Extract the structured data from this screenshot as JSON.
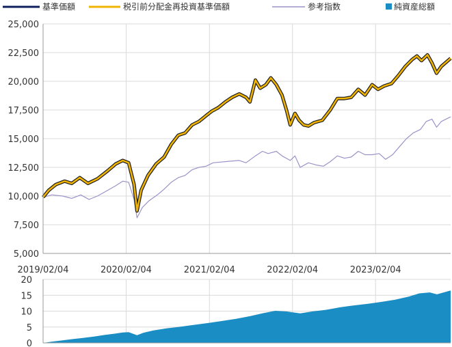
{
  "chart_data": [
    {
      "type": "line",
      "title": "",
      "legend": {
        "placement": "top",
        "entries": [
          {
            "name": "基準価額",
            "color": "#0d1f5c",
            "marker": "line"
          },
          {
            "name": "税引前分配金再投資基準価額",
            "color": "#f0b400",
            "marker": "line"
          },
          {
            "name": "参考指数",
            "color": "#9a92c8",
            "marker": "line"
          },
          {
            "name": "純資産総額",
            "color": "#1a8ec4",
            "marker": "square"
          }
        ]
      },
      "xlabel": "",
      "ylabel": "",
      "x_ticks": [
        "2019/02/04",
        "2020/02/04",
        "2021/02/04",
        "2022/02/04",
        "2023/02/04"
      ],
      "x_range": [
        "2019/02/04",
        "2023/12/31"
      ],
      "y_ticks": [
        "5,000",
        "7,500",
        "10,000",
        "12,500",
        "15,000",
        "17,500",
        "20,000",
        "22,500",
        "25,000"
      ],
      "ylim": [
        5000,
        25000
      ],
      "grid": true,
      "series": [
        {
          "name": "税引前分配金再投資基準価額",
          "color": "#f0b400",
          "points": [
            [
              "2019/02/04",
              9900
            ],
            [
              "2019/03/01",
              10500
            ],
            [
              "2019/04/01",
              11000
            ],
            [
              "2019/05/10",
              11300
            ],
            [
              "2019/06/10",
              11100
            ],
            [
              "2019/07/15",
              11600
            ],
            [
              "2019/08/20",
              11100
            ],
            [
              "2019/10/01",
              11500
            ],
            [
              "2019/11/15",
              12200
            ],
            [
              "2019/12/20",
              12800
            ],
            [
              "2020/01/20",
              13100
            ],
            [
              "2020/02/15",
              12900
            ],
            [
              "2020/03/10",
              11000
            ],
            [
              "2020/03/23",
              8700
            ],
            [
              "2020/04/10",
              10500
            ],
            [
              "2020/05/10",
              11800
            ],
            [
              "2020/06/15",
              12800
            ],
            [
              "2020/07/20",
              13400
            ],
            [
              "2020/08/20",
              14500
            ],
            [
              "2020/09/20",
              15300
            ],
            [
              "2020/10/20",
              15500
            ],
            [
              "2020/11/20",
              16200
            ],
            [
              "2020/12/20",
              16500
            ],
            [
              "2021/01/20",
              17000
            ],
            [
              "2021/02/15",
              17400
            ],
            [
              "2021/03/15",
              17700
            ],
            [
              "2021/04/15",
              18200
            ],
            [
              "2021/05/15",
              18600
            ],
            [
              "2021/06/15",
              18900
            ],
            [
              "2021/07/15",
              18600
            ],
            [
              "2021/08/01",
              18200
            ],
            [
              "2021/08/25",
              20100
            ],
            [
              "2021/09/15",
              19400
            ],
            [
              "2021/10/10",
              19700
            ],
            [
              "2021/11/01",
              20300
            ],
            [
              "2021/11/25",
              19700
            ],
            [
              "2021/12/20",
              18800
            ],
            [
              "2022/01/10",
              17400
            ],
            [
              "2022/01/25",
              16200
            ],
            [
              "2022/02/15",
              17200
            ],
            [
              "2022/03/05",
              16600
            ],
            [
              "2022/03/25",
              16200
            ],
            [
              "2022/04/15",
              16100
            ],
            [
              "2022/05/10",
              16400
            ],
            [
              "2022/06/15",
              16600
            ],
            [
              "2022/07/20",
              17500
            ],
            [
              "2022/08/20",
              18500
            ],
            [
              "2022/09/20",
              18500
            ],
            [
              "2022/10/20",
              18600
            ],
            [
              "2022/11/20",
              19300
            ],
            [
              "2022/12/20",
              18800
            ],
            [
              "2023/01/20",
              19700
            ],
            [
              "2023/02/15",
              19300
            ],
            [
              "2023/03/15",
              19600
            ],
            [
              "2023/04/15",
              19800
            ],
            [
              "2023/05/15",
              20500
            ],
            [
              "2023/06/15",
              21300
            ],
            [
              "2023/07/15",
              21900
            ],
            [
              "2023/08/05",
              22200
            ],
            [
              "2023/08/25",
              21800
            ],
            [
              "2023/09/20",
              22300
            ],
            [
              "2023/10/10",
              21600
            ],
            [
              "2023/10/30",
              20700
            ],
            [
              "2023/11/20",
              21300
            ],
            [
              "2023/12/31",
              22000
            ]
          ]
        },
        {
          "name": "参考指数",
          "color": "#9a92c8",
          "points": [
            [
              "2019/02/04",
              9900
            ],
            [
              "2019/03/15",
              10100
            ],
            [
              "2019/05/01",
              10000
            ],
            [
              "2019/06/10",
              9800
            ],
            [
              "2019/07/20",
              10100
            ],
            [
              "2019/08/25",
              9700
            ],
            [
              "2019/10/01",
              10000
            ],
            [
              "2019/11/15",
              10500
            ],
            [
              "2019/12/20",
              10900
            ],
            [
              "2020/01/20",
              11300
            ],
            [
              "2020/02/15",
              11200
            ],
            [
              "2020/03/10",
              9700
            ],
            [
              "2020/03/23",
              8100
            ],
            [
              "2020/04/15",
              9000
            ],
            [
              "2020/05/15",
              9600
            ],
            [
              "2020/06/20",
              10100
            ],
            [
              "2020/07/20",
              10600
            ],
            [
              "2020/08/20",
              11200
            ],
            [
              "2020/09/20",
              11600
            ],
            [
              "2020/10/20",
              11800
            ],
            [
              "2020/11/20",
              12300
            ],
            [
              "2020/12/20",
              12500
            ],
            [
              "2021/01/20",
              12600
            ],
            [
              "2021/02/20",
              12900
            ],
            [
              "2021/04/15",
              13000
            ],
            [
              "2021/06/15",
              13100
            ],
            [
              "2021/07/15",
              12900
            ],
            [
              "2021/08/25",
              13500
            ],
            [
              "2021/09/25",
              13900
            ],
            [
              "2021/10/20",
              13700
            ],
            [
              "2021/11/25",
              13900
            ],
            [
              "2021/12/20",
              13500
            ],
            [
              "2022/01/25",
              13100
            ],
            [
              "2022/02/15",
              13500
            ],
            [
              "2022/03/10",
              12500
            ],
            [
              "2022/04/15",
              12900
            ],
            [
              "2022/05/20",
              12700
            ],
            [
              "2022/06/20",
              12600
            ],
            [
              "2022/07/20",
              13000
            ],
            [
              "2022/08/20",
              13500
            ],
            [
              "2022/09/20",
              13300
            ],
            [
              "2022/10/20",
              13400
            ],
            [
              "2022/11/20",
              13900
            ],
            [
              "2022/12/20",
              13600
            ],
            [
              "2023/01/20",
              13600
            ],
            [
              "2023/02/20",
              13700
            ],
            [
              "2023/03/20",
              13200
            ],
            [
              "2023/04/20",
              13600
            ],
            [
              "2023/05/20",
              14300
            ],
            [
              "2023/06/20",
              15000
            ],
            [
              "2023/07/20",
              15500
            ],
            [
              "2023/08/20",
              15800
            ],
            [
              "2023/09/15",
              16500
            ],
            [
              "2023/10/10",
              16700
            ],
            [
              "2023/10/30",
              16000
            ],
            [
              "2023/11/20",
              16500
            ],
            [
              "2023/12/31",
              16900
            ]
          ]
        }
      ]
    },
    {
      "type": "area",
      "title": "",
      "name": "純資産総額",
      "color": "#1a8ec4",
      "y_ticks": [
        "0",
        "5",
        "10",
        "15",
        "20"
      ],
      "ylim": [
        0,
        20
      ],
      "x_range": [
        "2019/02/04",
        "2023/12/31"
      ],
      "grid": true,
      "points": [
        [
          "2019/02/04",
          0.0
        ],
        [
          "2019/03/15",
          0.4
        ],
        [
          "2019/05/01",
          0.8
        ],
        [
          "2019/06/15",
          1.2
        ],
        [
          "2019/08/01",
          1.6
        ],
        [
          "2019/09/15",
          2.0
        ],
        [
          "2019/11/01",
          2.5
        ],
        [
          "2019/12/15",
          2.9
        ],
        [
          "2020/01/20",
          3.3
        ],
        [
          "2020/02/15",
          3.4
        ],
        [
          "2020/03/23",
          2.4
        ],
        [
          "2020/04/20",
          3.2
        ],
        [
          "2020/06/01",
          3.9
        ],
        [
          "2020/08/01",
          4.6
        ],
        [
          "2020/10/01",
          5.1
        ],
        [
          "2020/12/01",
          5.7
        ],
        [
          "2021/02/01",
          6.3
        ],
        [
          "2021/04/01",
          6.9
        ],
        [
          "2021/06/01",
          7.6
        ],
        [
          "2021/08/01",
          8.4
        ],
        [
          "2021/10/01",
          9.4
        ],
        [
          "2021/11/20",
          10.1
        ],
        [
          "2022/01/10",
          9.9
        ],
        [
          "2022/03/10",
          9.3
        ],
        [
          "2022/05/01",
          9.9
        ],
        [
          "2022/07/01",
          10.4
        ],
        [
          "2022/09/01",
          11.2
        ],
        [
          "2022/11/01",
          11.8
        ],
        [
          "2023/01/01",
          12.3
        ],
        [
          "2023/03/01",
          12.9
        ],
        [
          "2023/05/01",
          13.6
        ],
        [
          "2023/07/01",
          14.6
        ],
        [
          "2023/08/15",
          15.6
        ],
        [
          "2023/10/01",
          15.9
        ],
        [
          "2023/11/01",
          15.3
        ],
        [
          "2023/12/31",
          16.5
        ]
      ]
    }
  ]
}
